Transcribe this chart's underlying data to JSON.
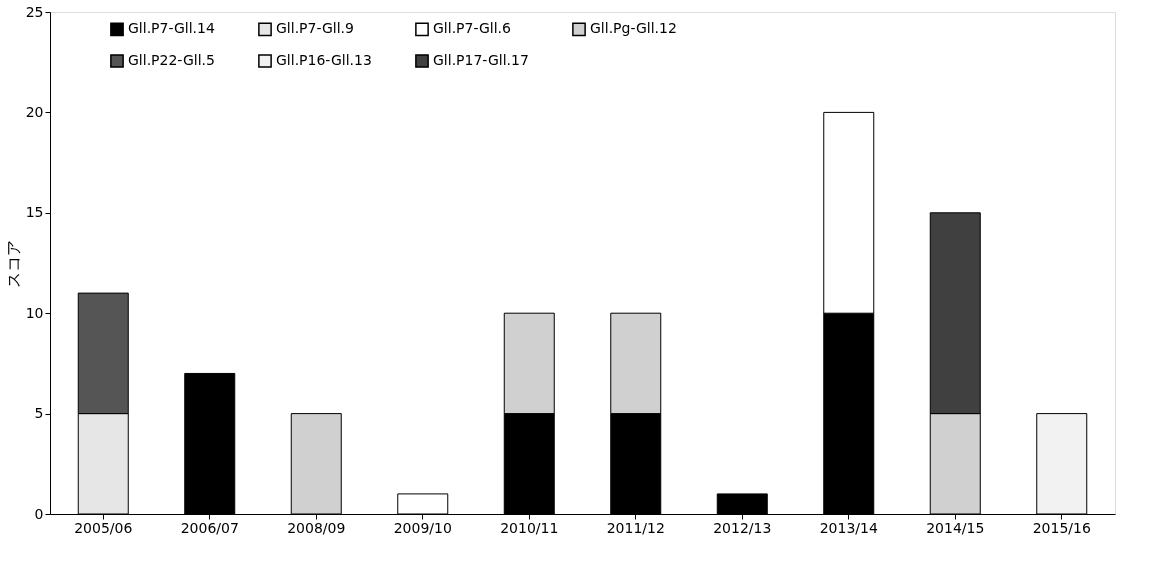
{
  "chart_data": {
    "type": "bar",
    "stacked": true,
    "ylabel": "スコア",
    "categories": [
      "2005/06",
      "2006/07",
      "2008/09",
      "2009/10",
      "2010/11",
      "2011/12",
      "2012/13",
      "2013/14",
      "2014/15",
      "2015/16"
    ],
    "series": [
      {
        "name": "Gll.P7-Gll.14",
        "color": "#000000",
        "values": [
          null,
          7,
          null,
          null,
          5,
          5,
          1,
          10,
          null,
          null
        ]
      },
      {
        "name": "Gll.P7-Gll.9",
        "color": "#e6e6e6",
        "values": [
          5,
          null,
          null,
          null,
          null,
          null,
          null,
          null,
          null,
          null
        ]
      },
      {
        "name": "Gll.P7-Gll.6",
        "color": "#ffffff",
        "values": [
          null,
          null,
          null,
          1,
          null,
          null,
          null,
          10,
          null,
          null
        ]
      },
      {
        "name": "Gll.Pg-Gll.12",
        "color": "#d0d0d0",
        "values": [
          null,
          null,
          5,
          null,
          5,
          5,
          null,
          null,
          5,
          null
        ]
      },
      {
        "name": "Gll.P22-Gll.5",
        "color": "#555555",
        "values": [
          6,
          null,
          null,
          null,
          null,
          null,
          null,
          null,
          null,
          null
        ]
      },
      {
        "name": "Gll.P16-Gll.13",
        "color": "#f2f2f2",
        "values": [
          null,
          null,
          null,
          null,
          null,
          null,
          null,
          null,
          null,
          5
        ]
      },
      {
        "name": "Gll.P17-Gll.17",
        "color": "#404040",
        "values": [
          null,
          null,
          null,
          null,
          null,
          null,
          null,
          null,
          10,
          null
        ]
      }
    ],
    "ylim": [
      0,
      25
    ],
    "yticks": [
      0,
      5,
      10,
      15,
      20,
      25
    ],
    "grid": false,
    "legend": "top"
  }
}
